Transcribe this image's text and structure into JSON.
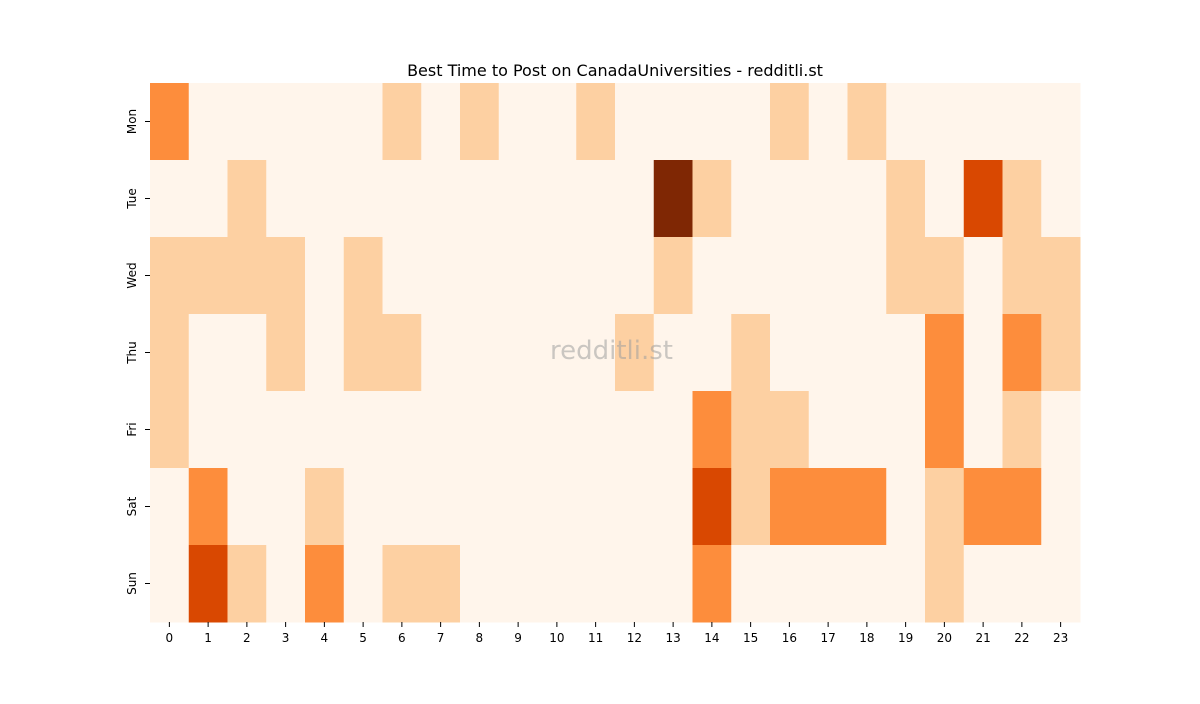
{
  "watermark": "redditli.st",
  "colors": {
    "scale": [
      "#fff5eb",
      "#fdd0a2",
      "#fd8d3c",
      "#d94801",
      "#7f2704"
    ],
    "text": "#000000"
  },
  "chart_data": {
    "type": "heatmap",
    "title": "Best Time to Post on CanadaUniversities - redditli.st",
    "xlabel": "",
    "ylabel": "",
    "x": [
      "0",
      "1",
      "2",
      "3",
      "4",
      "5",
      "6",
      "7",
      "8",
      "9",
      "10",
      "11",
      "12",
      "13",
      "14",
      "15",
      "16",
      "17",
      "18",
      "19",
      "20",
      "21",
      "22",
      "23"
    ],
    "y": [
      "Mon",
      "Tue",
      "Wed",
      "Thu",
      "Fri",
      "Sat",
      "Sun"
    ],
    "levels": [
      0,
      1,
      2,
      3,
      4
    ],
    "values": [
      [
        2,
        0,
        0,
        0,
        0,
        0,
        1,
        0,
        1,
        0,
        0,
        1,
        0,
        0,
        0,
        0,
        1,
        0,
        1,
        0,
        0,
        0,
        0,
        0
      ],
      [
        0,
        0,
        1,
        0,
        0,
        0,
        0,
        0,
        0,
        0,
        0,
        0,
        0,
        4,
        1,
        0,
        0,
        0,
        0,
        1,
        0,
        3,
        1,
        0
      ],
      [
        1,
        1,
        1,
        1,
        0,
        1,
        0,
        0,
        0,
        0,
        0,
        0,
        0,
        1,
        0,
        0,
        0,
        0,
        0,
        1,
        1,
        0,
        1,
        1
      ],
      [
        1,
        0,
        0,
        1,
        0,
        1,
        1,
        0,
        0,
        0,
        0,
        0,
        1,
        0,
        0,
        1,
        0,
        0,
        0,
        0,
        2,
        0,
        2,
        1
      ],
      [
        1,
        0,
        0,
        0,
        0,
        0,
        0,
        0,
        0,
        0,
        0,
        0,
        0,
        0,
        2,
        1,
        1,
        0,
        0,
        0,
        2,
        0,
        1,
        0
      ],
      [
        0,
        2,
        0,
        0,
        1,
        0,
        0,
        0,
        0,
        0,
        0,
        0,
        0,
        0,
        3,
        1,
        2,
        2,
        2,
        0,
        1,
        2,
        2,
        0
      ],
      [
        0,
        3,
        1,
        0,
        2,
        0,
        1,
        1,
        0,
        0,
        0,
        0,
        0,
        0,
        2,
        0,
        0,
        0,
        0,
        0,
        1,
        0,
        0,
        0
      ]
    ],
    "grid": false,
    "legend": "none"
  }
}
